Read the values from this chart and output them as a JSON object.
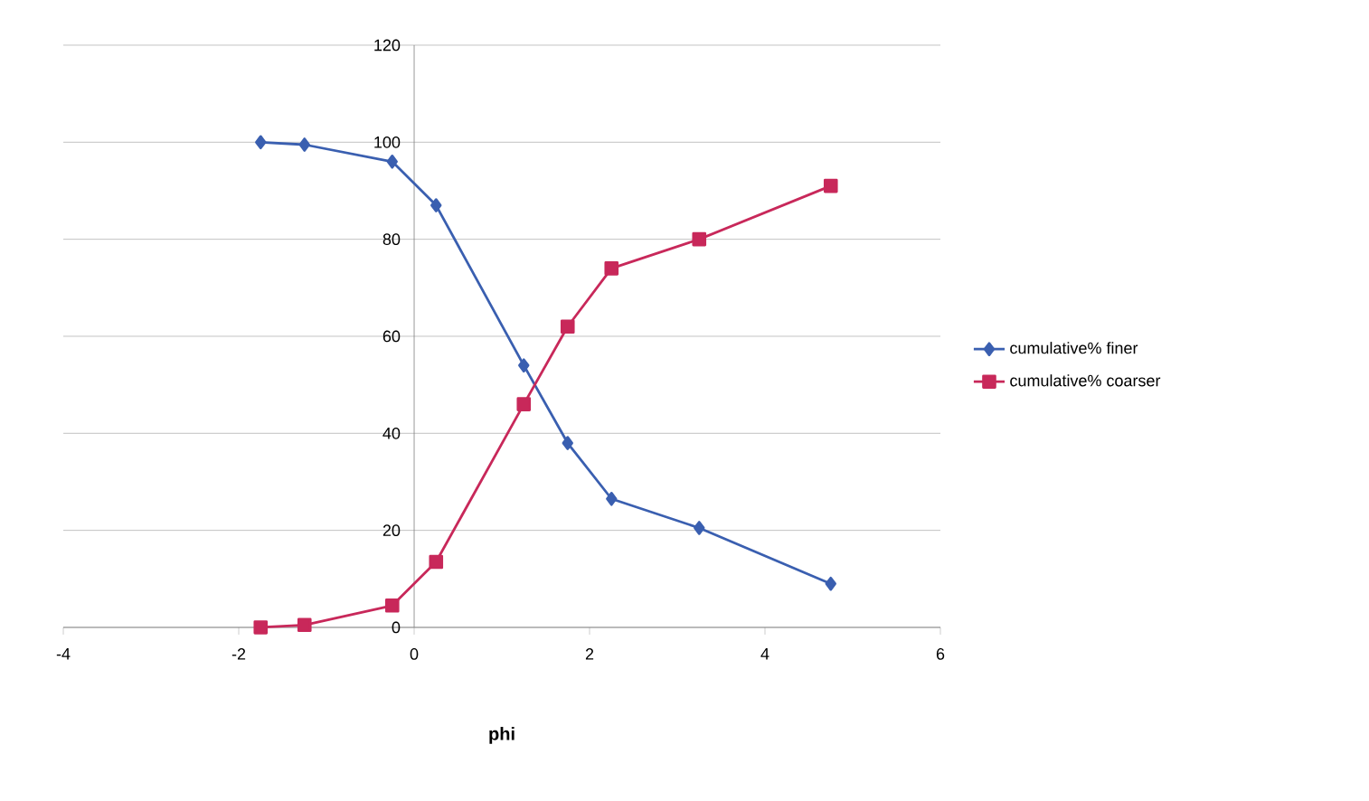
{
  "chart_data": {
    "type": "line",
    "xlabel": "phi",
    "x": [
      -1.75,
      -1.25,
      -0.25,
      0.25,
      1.25,
      1.75,
      2.25,
      3.25,
      4.75
    ],
    "series": [
      {
        "name": "cumulative% finer",
        "color": "#3a5fb0",
        "marker": "diamond",
        "values": [
          100,
          99.5,
          96,
          87,
          54,
          38,
          26.5,
          20.5,
          9
        ]
      },
      {
        "name": "cumulative% coarser",
        "color": "#c8285a",
        "marker": "square",
        "values": [
          0,
          0.5,
          4.5,
          13.5,
          46,
          62,
          74,
          80,
          91
        ]
      }
    ],
    "xlim": [
      -4,
      6
    ],
    "xticks": [
      -4,
      -2,
      0,
      2,
      4,
      6
    ],
    "ylim": [
      0,
      120
    ],
    "yticks": [
      0,
      20,
      40,
      60,
      80,
      100,
      120
    ],
    "grid": "y",
    "legend": "right",
    "line_style": "solid"
  }
}
